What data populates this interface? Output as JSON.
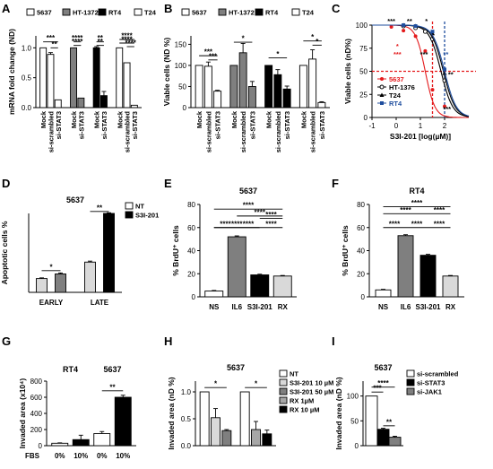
{
  "colors": {
    "white": "#ffffff",
    "dark_gray": "#7f7f7f",
    "black": "#000000",
    "light_gray": "#d9d9d9",
    "med_gray": "#a6a6a6",
    "red": "#e41a1c",
    "blue": "#1f4e9e",
    "axis": "#000000"
  },
  "chart_data": [
    {
      "letter": "A",
      "type": "bar",
      "ylabel": "mRNA fold change (ND)",
      "ylim": [
        0,
        1.2
      ],
      "yticks": [
        0.0,
        0.5,
        1.0
      ],
      "legend": [
        "5637",
        "HT-1372",
        "RT4",
        "T24"
      ],
      "legend_colors": [
        "#ffffff",
        "#7f7f7f",
        "#000000",
        "#ffffff"
      ],
      "categories": [
        "Mock",
        "si-scrambled",
        "si-STAT3",
        "Mock",
        "si-STAT3",
        "Mock",
        "si-STAT3",
        "Mock",
        "si-scrambled",
        "si-STAT3"
      ],
      "values": [
        1.0,
        0.89,
        0.13,
        1.0,
        0.16,
        1.0,
        0.2,
        1.0,
        0.75,
        0.04
      ],
      "errors": [
        0.0,
        0.03,
        0.0,
        0.0,
        0.0,
        0.02,
        0.07,
        0.0,
        0.0,
        0.0
      ],
      "bar_colors": [
        "#ffffff",
        "#ffffff",
        "#ffffff",
        "#7f7f7f",
        "#7f7f7f",
        "#000000",
        "#000000",
        "#ffffff",
        "#ffffff",
        "#ffffff"
      ],
      "gap_after": [
        2,
        4,
        6
      ],
      "sig": [
        {
          "from": 0,
          "to": 2,
          "label": "***",
          "y": 1.1
        },
        {
          "from": 1,
          "to": 2,
          "label": "**",
          "y": 1.0
        },
        {
          "from": 3,
          "to": 4,
          "label": "****",
          "y": 1.1
        },
        {
          "from": 3,
          "to": 4,
          "label": "****",
          "y": 1.04
        },
        {
          "from": 5,
          "to": 6,
          "label": "**",
          "y": 1.1
        },
        {
          "from": 5,
          "to": 6,
          "label": "**",
          "y": 1.04
        },
        {
          "from": 7,
          "to": 9,
          "label": "****",
          "y": 1.14
        },
        {
          "from": 7,
          "to": 9,
          "label": "****",
          "y": 1.08
        },
        {
          "from": 8,
          "to": 9,
          "label": "****",
          "y": 1.02
        }
      ]
    },
    {
      "letter": "B",
      "type": "bar",
      "ylabel": "Viable cells (ND %)",
      "ylim": [
        0,
        170
      ],
      "yticks": [
        0,
        50,
        100,
        150
      ],
      "legend": [
        "5637",
        "HT-1372",
        "RT4",
        "T24"
      ],
      "legend_colors": [
        "#ffffff",
        "#7f7f7f",
        "#000000",
        "#ffffff"
      ],
      "categories": [
        "Mock",
        "si-scrambled",
        "si-STAT3",
        "Mock",
        "si-scrambled",
        "si-STAT3",
        "Mock",
        "si-scrambled",
        "si-STAT3",
        "Mock",
        "si-scrambled",
        "si-STAT3"
      ],
      "values": [
        100,
        98,
        39,
        100,
        130,
        50,
        100,
        78,
        44,
        100,
        115,
        12
      ],
      "errors": [
        0,
        10,
        2,
        0,
        22,
        12,
        0,
        12,
        7,
        0,
        22,
        2
      ],
      "bar_colors": [
        "#ffffff",
        "#ffffff",
        "#ffffff",
        "#7f7f7f",
        "#7f7f7f",
        "#7f7f7f",
        "#000000",
        "#000000",
        "#000000",
        "#ffffff",
        "#ffffff",
        "#ffffff"
      ],
      "gap_after": [
        2,
        5,
        8
      ],
      "sig": [
        {
          "from": 0,
          "to": 2,
          "label": "***",
          "y": 123
        },
        {
          "from": 1,
          "to": 2,
          "label": "***",
          "y": 113
        },
        {
          "from": 3,
          "to": 5,
          "label": "*",
          "y": 155
        },
        {
          "from": 6,
          "to": 8,
          "label": "*",
          "y": 118
        },
        {
          "from": 9,
          "to": 11,
          "label": "*",
          "y": 158
        },
        {
          "from": 10,
          "to": 11,
          "label": "*",
          "y": 148
        }
      ]
    },
    {
      "letter": "C",
      "type": "line",
      "ylabel": "Viable cells (nD%)",
      "xlabel": "S3I-201 [log(µM)]",
      "xlim": [
        -1,
        3
      ],
      "ylim": [
        0,
        100
      ],
      "xticks": [
        -1,
        0,
        1,
        2
      ],
      "yticks": [
        0,
        25,
        50,
        75,
        100
      ],
      "hline": 50,
      "vlines": [
        1.5,
        2.0
      ],
      "series": [
        {
          "name": "5637",
          "color": "#e41a1c",
          "ic50": 1.2,
          "hill": 2.2,
          "marker": "circle",
          "x": [
            -0.2,
            0.3,
            0.8,
            1.2,
            1.5,
            2.0
          ],
          "y": [
            98,
            94,
            88,
            72,
            30,
            12
          ]
        },
        {
          "name": "HT-1376",
          "color": "#000000",
          "ic50": 1.85,
          "hill": 1.8,
          "marker": "ring",
          "x": [
            0.3,
            0.8,
            1.2,
            1.5,
            2.0
          ],
          "y": [
            99,
            97,
            93,
            85,
            40
          ]
        },
        {
          "name": "T24",
          "color": "#000000",
          "ic50": 1.95,
          "hill": 1.8,
          "marker": "triangle",
          "x": [
            0.3,
            0.8,
            1.5,
            2.0
          ],
          "y": [
            100,
            99,
            91,
            48
          ]
        },
        {
          "name": "RT4",
          "color": "#1f4e9e",
          "ic50": 2.0,
          "hill": 1.8,
          "marker": "square",
          "x": [
            0.3,
            0.8,
            1.5,
            2.0
          ],
          "y": [
            100,
            99,
            93,
            52
          ]
        }
      ],
      "annotations": [
        {
          "x": -0.2,
          "y": 102,
          "label": "***",
          "color": "#000000"
        },
        {
          "x": 0.55,
          "y": 102,
          "label": "**",
          "color": "#000000"
        },
        {
          "x": 1.25,
          "y": 102,
          "label": "*",
          "color": "#000000"
        },
        {
          "x": 0.05,
          "y": 75,
          "label": "*",
          "color": "#e41a1c"
        },
        {
          "x": 0.05,
          "y": 66,
          "label": "***",
          "color": "#e41a1c"
        },
        {
          "x": 1.15,
          "y": 66,
          "label": "***",
          "color": "#000000"
        },
        {
          "x": 2.05,
          "y": 66,
          "label": "**",
          "color": "#1f4e9e"
        },
        {
          "x": 2.25,
          "y": 44,
          "label": "**",
          "color": "#000000"
        },
        {
          "x": 2.1,
          "y": 7,
          "label": "***",
          "color": "#000000"
        }
      ]
    },
    {
      "letter": "D",
      "type": "bar",
      "title": "5637",
      "ylabel": "Apoptotic cells %",
      "ylim": [
        0,
        12
      ],
      "yticks": [],
      "legend": [
        "NT",
        "S3I-201"
      ],
      "legend_colors": [
        "#ffffff",
        "#000000"
      ],
      "categories": [
        "EARLY",
        "",
        "LATE",
        ""
      ],
      "xlabels": [
        "EARLY",
        "LATE"
      ],
      "values": [
        2.1,
        2.8,
        4.6,
        12.0
      ],
      "errors": [
        0.1,
        0.15,
        0.15,
        0.1
      ],
      "bar_colors": [
        "#d9d9d9",
        "#7f7f7f",
        "#d9d9d9",
        "#000000"
      ],
      "gap_after": [
        1
      ],
      "sig": [
        {
          "from": 0,
          "to": 1,
          "label": "*",
          "y": 3.3
        },
        {
          "from": 2,
          "to": 3,
          "label": "**",
          "y": 12.3
        }
      ]
    },
    {
      "letter": "E",
      "type": "bar",
      "title": "5637",
      "ylabel": "% BrdU⁺ cells",
      "ylim": [
        0,
        80
      ],
      "yticks": [
        0,
        20,
        40,
        60,
        80
      ],
      "categories": [
        "NS",
        "IL6",
        "S3I-201",
        "RX"
      ],
      "values": [
        5,
        52,
        19,
        18
      ],
      "errors": [
        0.5,
        0.8,
        0.6,
        0.5
      ],
      "bar_colors": [
        "#ffffff",
        "#7f7f7f",
        "#000000",
        "#d9d9d9"
      ],
      "sig": [
        {
          "from": 0,
          "to": 3,
          "label": "****",
          "y": 76
        },
        {
          "from": 2,
          "to": 3,
          "label": "****",
          "y": 68
        },
        {
          "from": 0,
          "to": 2,
          "label": "****",
          "y": 60
        },
        {
          "from": 1,
          "to": 3,
          "label": "****",
          "y": 70
        },
        {
          "from": 0,
          "to": 1,
          "label": "****",
          "y": 60
        },
        {
          "from": 1,
          "to": 2,
          "label": "****",
          "y": 60
        },
        {
          "from": 2,
          "to": 3,
          "label": "****",
          "y": 60
        }
      ]
    },
    {
      "letter": "F",
      "type": "bar",
      "title": "RT4",
      "ylabel": "% BrdU⁺ cells",
      "ylim": [
        0,
        80
      ],
      "yticks": [
        0,
        20,
        40,
        60,
        80
      ],
      "categories": [
        "NS",
        "IL6",
        "S3I-201",
        "RX"
      ],
      "values": [
        6,
        53,
        36,
        18
      ],
      "errors": [
        0.5,
        0.8,
        0.8,
        0.5
      ],
      "bar_colors": [
        "#ffffff",
        "#7f7f7f",
        "#000000",
        "#d9d9d9"
      ],
      "sig": [
        {
          "from": 0,
          "to": 3,
          "label": "****",
          "y": 78
        },
        {
          "from": 0,
          "to": 2,
          "label": "****",
          "y": 72
        },
        {
          "from": 2,
          "to": 3,
          "label": "****",
          "y": 72
        },
        {
          "from": 0,
          "to": 1,
          "label": "****",
          "y": 60
        },
        {
          "from": 1,
          "to": 2,
          "label": "****",
          "y": 60
        },
        {
          "from": 2,
          "to": 3,
          "label": "****",
          "y": 60
        }
      ]
    },
    {
      "letter": "G",
      "type": "bar",
      "ylabel": "Invaded area (x10⁴)",
      "ylim": [
        0,
        800
      ],
      "yticks": [
        0,
        200,
        400,
        600,
        800
      ],
      "group_labels": [
        "RT4",
        "5637"
      ],
      "xprefix": "FBS",
      "categories": [
        "0%",
        "10%",
        "0%",
        "10%"
      ],
      "values": [
        30,
        75,
        150,
        600
      ],
      "errors": [
        5,
        55,
        25,
        25
      ],
      "bar_colors": [
        "#ffffff",
        "#000000",
        "#ffffff",
        "#000000"
      ],
      "sig": [
        {
          "from": 2,
          "to": 3,
          "label": "**",
          "y": 680
        }
      ]
    },
    {
      "letter": "H",
      "type": "bar",
      "title": "5637",
      "ylabel": "Invaded area (nD %)",
      "ylim": [
        0,
        1.2
      ],
      "yticks": [
        0.0,
        0.5,
        1.0
      ],
      "legend": [
        "NT",
        "S3I-201 10 µM",
        "S3I-201 50 µM",
        "RX 1µM",
        "RX 10 µM"
      ],
      "legend_colors": [
        "#ffffff",
        "#d9d9d9",
        "#7f7f7f",
        "#a6a6a6",
        "#000000"
      ],
      "categories": [
        "",
        "",
        "",
        "",
        "",
        ""
      ],
      "values": [
        1.0,
        0.52,
        0.28,
        1.0,
        0.3,
        0.22
      ],
      "errors": [
        0,
        0.17,
        0.02,
        0,
        0.15,
        0.07
      ],
      "bar_colors": [
        "#ffffff",
        "#d9d9d9",
        "#7f7f7f",
        "#ffffff",
        "#a6a6a6",
        "#000000"
      ],
      "gap_after": [
        2
      ],
      "sig": [
        {
          "from": 0,
          "to": 2,
          "label": "*",
          "y": 1.08
        },
        {
          "from": 3,
          "to": 5,
          "label": "*",
          "y": 1.08
        }
      ]
    },
    {
      "letter": "I",
      "type": "bar",
      "title": "5637",
      "ylabel": "Invaded area (nD %)",
      "ylim": [
        0,
        130
      ],
      "yticks": [
        0,
        50,
        100
      ],
      "legend": [
        "si-scrambled",
        "si-STAT3",
        "si-JAK1"
      ],
      "legend_colors": [
        "#ffffff",
        "#000000",
        "#7f7f7f"
      ],
      "categories": [
        "",
        "",
        ""
      ],
      "values": [
        100,
        33,
        17
      ],
      "errors": [
        0,
        2,
        2
      ],
      "bar_colors": [
        "#ffffff",
        "#000000",
        "#7f7f7f"
      ],
      "sig": [
        {
          "from": 0,
          "to": 2,
          "label": "****",
          "y": 118
        },
        {
          "from": 0,
          "to": 1,
          "label": "***",
          "y": 108
        },
        {
          "from": 1,
          "to": 2,
          "label": "**",
          "y": 40
        }
      ]
    }
  ]
}
